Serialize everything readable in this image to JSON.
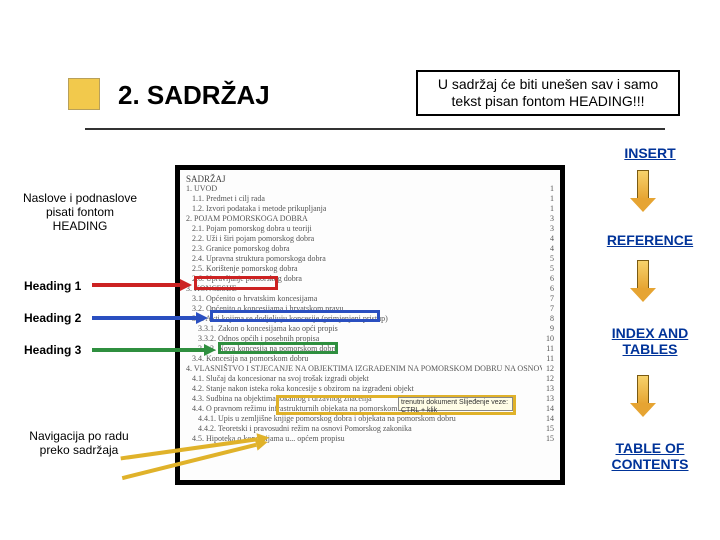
{
  "title": "2. SADRŽAJ",
  "note": "U sadržaj će biti unešen sav i samo tekst pisan fontom HEADING!!!",
  "left_labels": {
    "naslove": "Naslove i podnaslove pisati fontom HEADING",
    "h1": "Heading 1",
    "h2": "Heading 2",
    "h3": "Heading 3",
    "nav": "Navigacija po radu preko sadržaja"
  },
  "right_labels": {
    "insert": "INSERT",
    "reference": "REFERENCE",
    "index": "INDEX AND TABLES",
    "toc": "TABLE OF CONTENTS"
  },
  "tooltip": "trenutni dokument\nSlijeđenje veze: CTRL + klik",
  "toc": {
    "heading": "SADRŽAJ",
    "rows": [
      {
        "num": "1.",
        "text": "UVOD",
        "page": "1"
      },
      {
        "num": "1.1.",
        "text": "Predmet i cilj rada",
        "page": "1"
      },
      {
        "num": "1.2.",
        "text": "Izvori podataka i metode prikupljanja",
        "page": "1"
      },
      {
        "num": "2.",
        "text": "POJAM POMORSKOGA DOBRA",
        "page": "3"
      },
      {
        "num": "2.1.",
        "text": "Pojam pomorskog dobra u teoriji",
        "page": "3"
      },
      {
        "num": "2.2.",
        "text": "Uži i širi pojam pomorskog dobra",
        "page": "4"
      },
      {
        "num": "2.3.",
        "text": "Granice pomorskog dobra",
        "page": "4"
      },
      {
        "num": "2.4.",
        "text": "Upravna struktura pomorskoga dobra",
        "page": "5"
      },
      {
        "num": "2.5.",
        "text": "Korištenje pomorskog dobra",
        "page": "5"
      },
      {
        "num": "2.6.",
        "text": "Upravljanje pomorskog dobra",
        "page": "6"
      },
      {
        "num": "3.",
        "text": "KONCESIJE",
        "page": "6"
      },
      {
        "num": "3.1.",
        "text": "Općenito o hrvatskim koncesijama",
        "page": "7"
      },
      {
        "num": "3.2.",
        "text": "Općenito o koncesijama i hrvatskom pravu",
        "page": "7"
      },
      {
        "num": "3.3.",
        "text": "Akti kojima se dodjeljuju koncesije (primjenjeni pristup)",
        "page": "8"
      },
      {
        "num": "3.3.1.",
        "text": "Zakon o koncesijama kao opći propis",
        "page": "9"
      },
      {
        "num": "3.3.2.",
        "text": "Odnos općih i posebnih propisa",
        "page": "10"
      },
      {
        "num": "3.3.3.",
        "text": "Nova koncesija na pomorskom dobru",
        "page": "11"
      },
      {
        "num": "3.4.",
        "text": "Koncesija na pomorskom dobru",
        "page": "11"
      },
      {
        "num": "4.",
        "text": "VLASNIŠTVO I STJECANJE NA OBJEKTIMA IZGRAĐENIM NA POMORSKOM DOBRU NA OSNOVI KONCESIJE",
        "page": "12"
      },
      {
        "num": "4.1.",
        "text": "Slučaj da koncesionar na svoj trošak izgradi objekt",
        "page": "12"
      },
      {
        "num": "4.2.",
        "text": "Stanje nakon isteka roka koncesije s obzirom na izgrađeni objekt",
        "page": "13"
      },
      {
        "num": "4.3.",
        "text": "Sudbina na objektima lokalnog i državnog značenja",
        "page": "13"
      },
      {
        "num": "4.4.",
        "text": "O pravnom režimu infrastrukturnih objekata na pomorskom dobru",
        "page": "14"
      },
      {
        "num": "4.4.1.",
        "text": "Upis u zemljišne knjige pomorskog dobra i objekata na pomorskom dobru",
        "page": "14"
      },
      {
        "num": "4.4.2.",
        "text": "Teoretski i pravosudni režim na osnovi Pomorskog zakonika",
        "page": "15"
      },
      {
        "num": "4.5.",
        "text": "Hipoteka o koncesijama u... općem propisu",
        "page": "15"
      }
    ]
  },
  "colors": {
    "red": "#cc2222",
    "blue": "#2a4fc0",
    "green": "#2f8f3f",
    "yellow": "#e0b22a",
    "link": "#003399",
    "rule": "#333333"
  }
}
